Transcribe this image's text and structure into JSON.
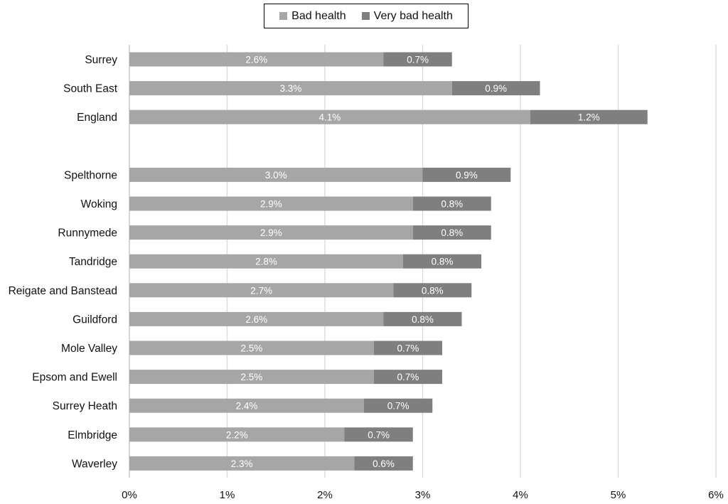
{
  "chart_data": {
    "type": "bar",
    "orientation": "horizontal",
    "stacked": true,
    "categories": [
      "Surrey",
      "South East",
      "England",
      "",
      "Spelthorne",
      "Woking",
      "Runnymede",
      "Tandridge",
      "Reigate and Banstead",
      "Guildford",
      "Mole Valley",
      "Epsom and Ewell",
      "Surrey Heath",
      "Elmbridge",
      "Waverley"
    ],
    "series": [
      {
        "name": "Bad health",
        "color": "#a6a6a6",
        "values": [
          2.6,
          3.3,
          4.1,
          null,
          3.0,
          2.9,
          2.9,
          2.8,
          2.7,
          2.6,
          2.5,
          2.5,
          2.4,
          2.2,
          2.3
        ],
        "labels": [
          "2.6%",
          "3.3%",
          "4.1%",
          "",
          "3.0%",
          "2.9%",
          "2.9%",
          "2.8%",
          "2.7%",
          "2.6%",
          "2.5%",
          "2.5%",
          "2.4%",
          "2.2%",
          "2.3%"
        ]
      },
      {
        "name": "Very bad health",
        "color": "#7f7f7f",
        "values": [
          0.7,
          0.9,
          1.2,
          null,
          0.9,
          0.8,
          0.8,
          0.8,
          0.8,
          0.8,
          0.7,
          0.7,
          0.7,
          0.7,
          0.6
        ],
        "labels": [
          "0.7%",
          "0.9%",
          "1.2%",
          "",
          "0.9%",
          "0.8%",
          "0.8%",
          "0.8%",
          "0.8%",
          "0.8%",
          "0.7%",
          "0.7%",
          "0.7%",
          "0.7%",
          "0.6%"
        ]
      }
    ],
    "xlim": [
      0,
      6
    ],
    "xticks": [
      0,
      1,
      2,
      3,
      4,
      5,
      6
    ],
    "xtick_labels": [
      "0%",
      "1%",
      "2%",
      "3%",
      "4%",
      "5%",
      "6%"
    ],
    "grid": "vertical",
    "legend": "top-center",
    "title": "",
    "xlabel": "",
    "ylabel": ""
  },
  "colors": {
    "grid": "#d9d9d9",
    "axis": "#bfbfbf",
    "label_text": "#ffffff",
    "category_text": "#111111",
    "tick_text": "#111111"
  }
}
